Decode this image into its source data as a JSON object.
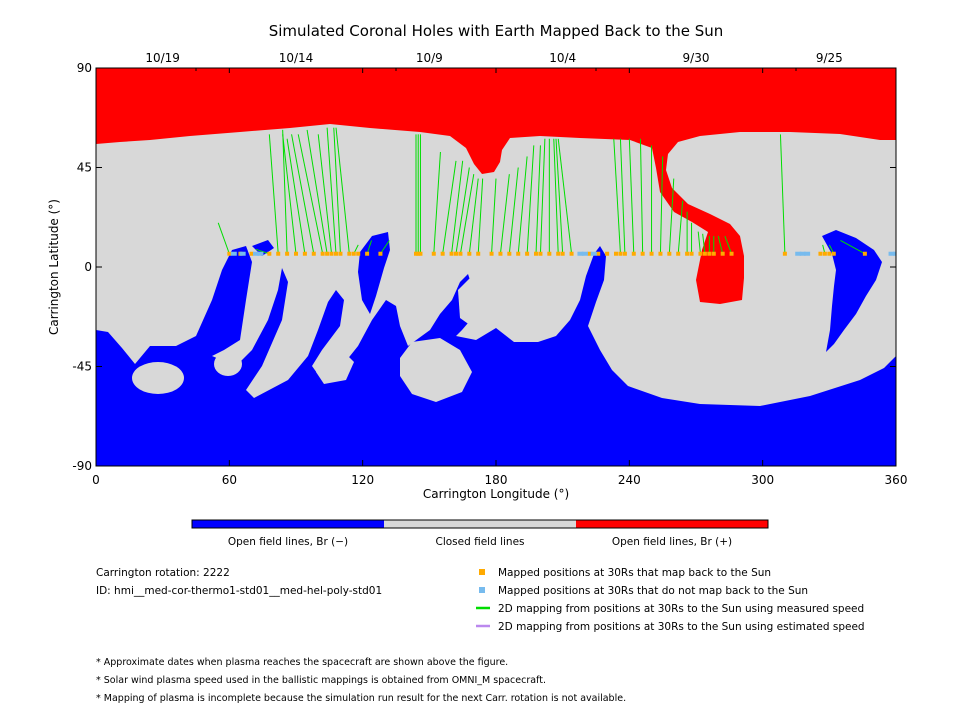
{
  "chart_data": {
    "type": "map",
    "title": "Simulated Coronal Holes with Earth Mapped Back to the Sun",
    "xlabel": "Carrington Longitude (°)",
    "ylabel": "Carrington Latitude (°)",
    "xlim": [
      0,
      360
    ],
    "ylim": [
      -90,
      90
    ],
    "x_ticks": [
      "0",
      "60",
      "120",
      "180",
      "240",
      "300",
      "360"
    ],
    "y_ticks": [
      "90",
      "45",
      "0",
      "-45",
      "-90"
    ],
    "top_dates": [
      {
        "label": "10/19",
        "lon": 30
      },
      {
        "label": "10/14",
        "lon": 90
      },
      {
        "label": "10/9",
        "lon": 150
      },
      {
        "label": "10/4",
        "lon": 210
      },
      {
        "label": "9/30",
        "lon": 270
      },
      {
        "label": "9/25",
        "lon": 330
      }
    ],
    "colorbar": [
      {
        "label": "Open field lines, Br (−)",
        "color": "#0000ff"
      },
      {
        "label": "Closed field lines",
        "color": "#d8d8d8"
      },
      {
        "label": "Open field lines, Br (+)",
        "color": "#ff0000"
      }
    ],
    "colors": {
      "negative": "#0000ff",
      "closed": "#d8d8d8",
      "positive": "#ff0000",
      "mapped": "#ffaa00",
      "unmapped": "#77bbee",
      "measured": "#00dd00",
      "estimated": "#bb88ee"
    },
    "mapping_lines": [
      {
        "lon30": 60,
        "lon": 55,
        "lat": 20
      },
      {
        "lon30": 78,
        "lon": 72,
        "lat": 8
      },
      {
        "lon30": 82,
        "lon": 78,
        "lat": 60
      },
      {
        "lon30": 86,
        "lon": 84,
        "lat": 62
      },
      {
        "lon30": 90,
        "lon": 84,
        "lat": 60
      },
      {
        "lon30": 94,
        "lon": 86,
        "lat": 58
      },
      {
        "lon30": 98,
        "lon": 88,
        "lat": 60
      },
      {
        "lon30": 102,
        "lon": 91,
        "lat": 60
      },
      {
        "lon30": 104,
        "lon": 95,
        "lat": 62
      },
      {
        "lon30": 106,
        "lon": 100,
        "lat": 60
      },
      {
        "lon30": 108,
        "lon": 104,
        "lat": 63
      },
      {
        "lon30": 110,
        "lon": 107,
        "lat": 63
      },
      {
        "lon30": 114,
        "lon": 108,
        "lat": 63
      },
      {
        "lon30": 116,
        "lon": 118,
        "lat": 10
      },
      {
        "lon30": 122,
        "lon": 124,
        "lat": 12
      },
      {
        "lon30": 128,
        "lon": 132,
        "lat": 12
      },
      {
        "lon30": 144,
        "lon": 144,
        "lat": 60
      },
      {
        "lon30": 145,
        "lon": 145,
        "lat": 60
      },
      {
        "lon30": 146,
        "lon": 146,
        "lat": 60
      },
      {
        "lon30": 152,
        "lon": 155,
        "lat": 52
      },
      {
        "lon30": 156,
        "lon": 162,
        "lat": 48
      },
      {
        "lon30": 160,
        "lon": 165,
        "lat": 48
      },
      {
        "lon30": 162,
        "lon": 168,
        "lat": 45
      },
      {
        "lon30": 164,
        "lon": 170,
        "lat": 42
      },
      {
        "lon30": 168,
        "lon": 172,
        "lat": 40
      },
      {
        "lon30": 172,
        "lon": 174,
        "lat": 40
      },
      {
        "lon30": 178,
        "lon": 180,
        "lat": 40
      },
      {
        "lon30": 182,
        "lon": 186,
        "lat": 42
      },
      {
        "lon30": 186,
        "lon": 190,
        "lat": 45
      },
      {
        "lon30": 190,
        "lon": 194,
        "lat": 50
      },
      {
        "lon30": 194,
        "lon": 197,
        "lat": 55
      },
      {
        "lon30": 198,
        "lon": 200,
        "lat": 55
      },
      {
        "lon30": 200,
        "lon": 202,
        "lat": 58
      },
      {
        "lon30": 204,
        "lon": 204,
        "lat": 58
      },
      {
        "lon30": 208,
        "lon": 206,
        "lat": 58
      },
      {
        "lon30": 210,
        "lon": 207,
        "lat": 58
      },
      {
        "lon30": 214,
        "lon": 208,
        "lat": 58
      },
      {
        "lon30": 236,
        "lon": 233,
        "lat": 58
      },
      {
        "lon30": 238,
        "lon": 236,
        "lat": 58
      },
      {
        "lon30": 242,
        "lon": 240,
        "lat": 58
      },
      {
        "lon30": 246,
        "lon": 245,
        "lat": 58
      },
      {
        "lon30": 250,
        "lon": 250,
        "lat": 55
      },
      {
        "lon30": 254,
        "lon": 255,
        "lat": 50
      },
      {
        "lon30": 258,
        "lon": 260,
        "lat": 40
      },
      {
        "lon30": 262,
        "lon": 264,
        "lat": 30
      },
      {
        "lon30": 266,
        "lon": 266,
        "lat": 25
      },
      {
        "lon30": 268,
        "lon": 268,
        "lat": 20
      },
      {
        "lon30": 272,
        "lon": 271,
        "lat": 16
      },
      {
        "lon30": 274,
        "lon": 273,
        "lat": 15
      },
      {
        "lon30": 276,
        "lon": 276,
        "lat": 14
      },
      {
        "lon30": 278,
        "lon": 278,
        "lat": 14
      },
      {
        "lon30": 282,
        "lon": 280,
        "lat": 14
      },
      {
        "lon30": 286,
        "lon": 283,
        "lat": 14
      },
      {
        "lon30": 310,
        "lon": 308,
        "lat": 60
      },
      {
        "lon30": 328,
        "lon": 327,
        "lat": 10
      },
      {
        "lon30": 332,
        "lon": 330,
        "lat": 10
      },
      {
        "lon30": 346,
        "lon": 335,
        "lat": 12
      }
    ],
    "mapped_points": {
      "lat": 6,
      "lon": [
        60,
        65,
        70,
        78,
        82,
        86,
        90,
        94,
        98,
        102,
        104,
        106,
        108,
        110,
        114,
        116,
        118,
        122,
        128,
        144,
        145,
        146,
        152,
        156,
        160,
        162,
        164,
        168,
        172,
        178,
        182,
        186,
        190,
        194,
        198,
        200,
        204,
        208,
        210,
        214,
        222,
        226,
        230,
        234,
        236,
        238,
        242,
        246,
        250,
        254,
        258,
        262,
        266,
        268,
        272,
        274,
        276,
        278,
        282,
        286,
        310,
        326,
        328,
        330,
        332,
        346
      ]
    },
    "unmapped_points": {
      "lat": 6,
      "lon": [
        62,
        66,
        72,
        74,
        218,
        220,
        224,
        316,
        318,
        320,
        358,
        360
      ]
    }
  },
  "info": {
    "rotation": "Carrington rotation: 2222",
    "id": "ID: hmi__med-cor-thermo1-std01__med-hel-poly-std01"
  },
  "legend": [
    {
      "type": "square",
      "color": "#ffaa00",
      "label": "Mapped positions at 30Rs that map back to the Sun"
    },
    {
      "type": "square",
      "color": "#77bbee",
      "label": "Mapped positions at 30Rs that do not map back to the Sun"
    },
    {
      "type": "line",
      "color": "#00dd00",
      "label": "2D mapping from positions at 30Rs to the Sun using measured speed"
    },
    {
      "type": "line",
      "color": "#bb88ee",
      "label": "2D mapping from positions at 30Rs to the Sun using estimated speed"
    }
  ],
  "notes": [
    "* Approximate dates when plasma reaches the spacecraft are shown above the figure.",
    "* Solar wind plasma speed used in the ballistic mappings is obtained from OMNI_M spacecraft.",
    "* Mapping of plasma is incomplete because the simulation run result for the next Carr. rotation is not available."
  ]
}
